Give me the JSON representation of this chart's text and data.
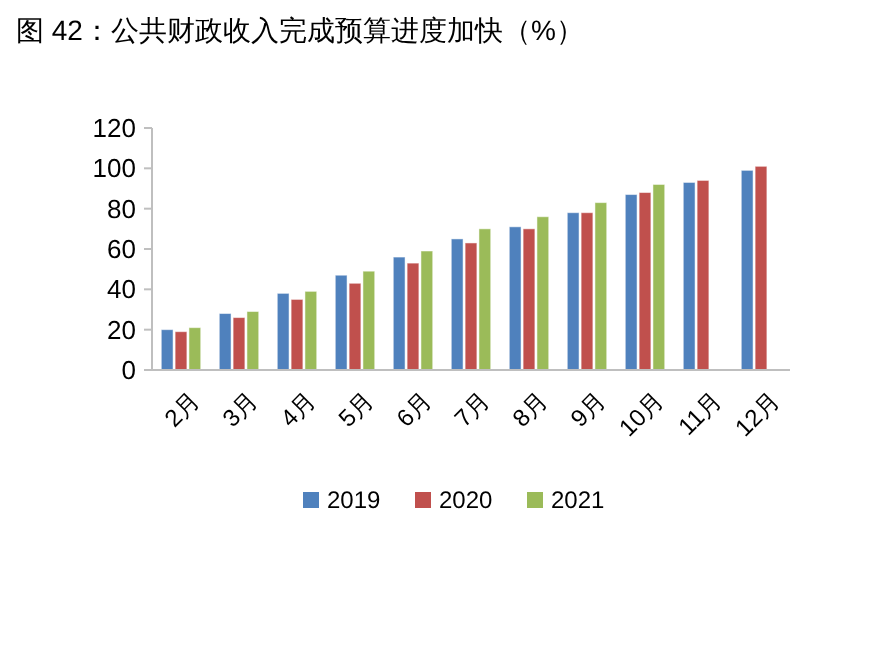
{
  "chart_data": {
    "type": "bar",
    "title": "图 42：公共财政收入完成预算进度加快（%）",
    "categories": [
      "2月",
      "3月",
      "4月",
      "5月",
      "6月",
      "7月",
      "8月",
      "9月",
      "10月",
      "11月",
      "12月"
    ],
    "series": [
      {
        "name": "2019",
        "color": "#4f81bd",
        "values": [
          20,
          28,
          38,
          47,
          56,
          65,
          71,
          78,
          87,
          93,
          99
        ]
      },
      {
        "name": "2020",
        "color": "#c0504d",
        "values": [
          19,
          26,
          35,
          43,
          53,
          63,
          70,
          78,
          88,
          94,
          101
        ]
      },
      {
        "name": "2021",
        "color": "#9bbb59",
        "values": [
          21,
          29,
          39,
          49,
          59,
          70,
          76,
          83,
          92,
          null,
          null
        ]
      }
    ],
    "ylim": [
      0,
      120
    ],
    "yticks": [
      0,
      20,
      40,
      60,
      80,
      100,
      120
    ],
    "grid": false,
    "legend": "bottom"
  }
}
